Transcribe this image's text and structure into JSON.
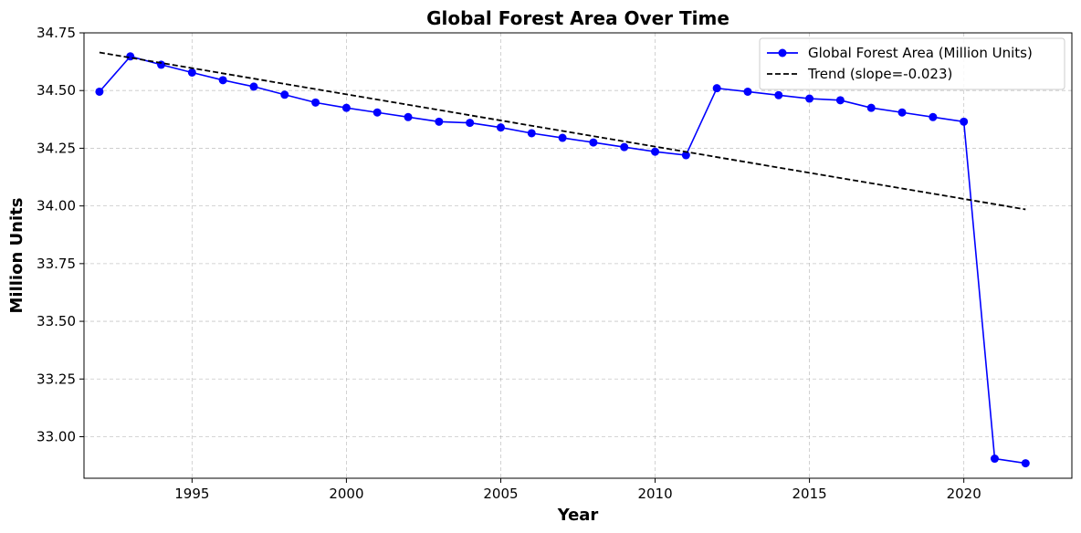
{
  "chart_data": {
    "type": "line",
    "title": "Global Forest Area Over Time",
    "xlabel": "Year",
    "ylabel": "Million Units",
    "xlim": [
      1991.5,
      2023.5
    ],
    "ylim": [
      32.82,
      34.75
    ],
    "xticks": [
      1995,
      2000,
      2005,
      2010,
      2015,
      2020
    ],
    "yticks": [
      33.0,
      33.25,
      33.5,
      33.75,
      34.0,
      34.25,
      34.5,
      34.75
    ],
    "grid": true,
    "legend_position": "top-right",
    "series": [
      {
        "name": "Global Forest Area (Million Units)",
        "style": "line-with-markers",
        "color": "#0000ff",
        "x": [
          1992,
          1993,
          1994,
          1995,
          1996,
          1997,
          1998,
          1999,
          2000,
          2001,
          2002,
          2003,
          2004,
          2005,
          2006,
          2007,
          2008,
          2009,
          2010,
          2011,
          2012,
          2013,
          2014,
          2015,
          2016,
          2017,
          2018,
          2019,
          2020,
          2021,
          2022
        ],
        "y": [
          34.495,
          34.648,
          34.612,
          34.578,
          34.545,
          34.517,
          34.482,
          34.448,
          34.425,
          34.405,
          34.385,
          34.365,
          34.36,
          34.34,
          34.315,
          34.295,
          34.275,
          34.255,
          34.235,
          34.22,
          34.51,
          34.495,
          34.48,
          34.465,
          34.458,
          34.425,
          34.405,
          34.385,
          34.365,
          32.905,
          32.885
        ]
      },
      {
        "name": "Trend (slope=-0.023)",
        "style": "dashed",
        "color": "#000000",
        "x": [
          1992,
          2022
        ],
        "y": [
          34.665,
          33.985
        ]
      }
    ]
  }
}
